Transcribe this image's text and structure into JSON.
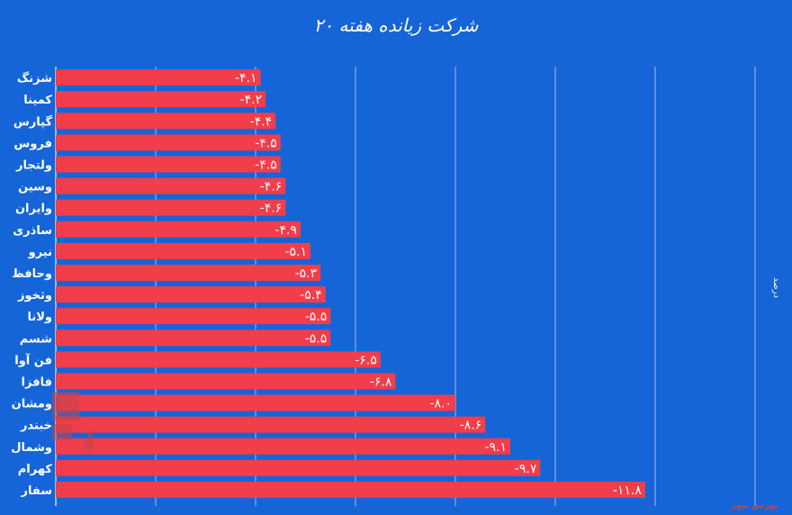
{
  "chart_data": {
    "type": "bar",
    "orientation": "horizontal",
    "title": "۲۰ شرکت زیانده هفته",
    "ylabel": "درصد",
    "categories": [
      "شزنگ",
      "کمینا",
      "گپارس",
      "فروس",
      "ولتجار",
      "وسین",
      "وایران",
      "ساذری",
      "نیرو",
      "وحافظ",
      "وثخوز",
      "ولانا",
      "شسم",
      "فن آوا",
      "فافزا",
      "ومشان",
      "خبندر",
      "وشمال",
      "کهرام",
      "سفار"
    ],
    "values": [
      -4.1,
      -4.2,
      -4.4,
      -4.5,
      -4.5,
      -4.6,
      -4.6,
      -4.9,
      -5.1,
      -5.3,
      -5.4,
      -5.5,
      -5.5,
      -6.5,
      -6.8,
      -8.0,
      -8.6,
      -9.1,
      -9.7,
      -11.8
    ],
    "value_labels": [
      "-۴.۱",
      "-۴.۲",
      "-۴.۴",
      "-۴.۵",
      "-۴.۵",
      "-۴.۶",
      "-۴.۶",
      "-۴.۹",
      "-۵.۱",
      "-۵.۳",
      "-۵.۴",
      "-۵.۵",
      "-۵.۵",
      "-۶.۵",
      "-۶.۸",
      "-۸.۰",
      "-۸.۶",
      "-۹.۱",
      "-۹.۷",
      "-۱۱.۸"
    ],
    "xlim": [
      0,
      -14
    ],
    "grid": true,
    "bar_color": "#f23d4a",
    "background_color": "#1565d8"
  },
  "watermark": "بورس نیوز"
}
